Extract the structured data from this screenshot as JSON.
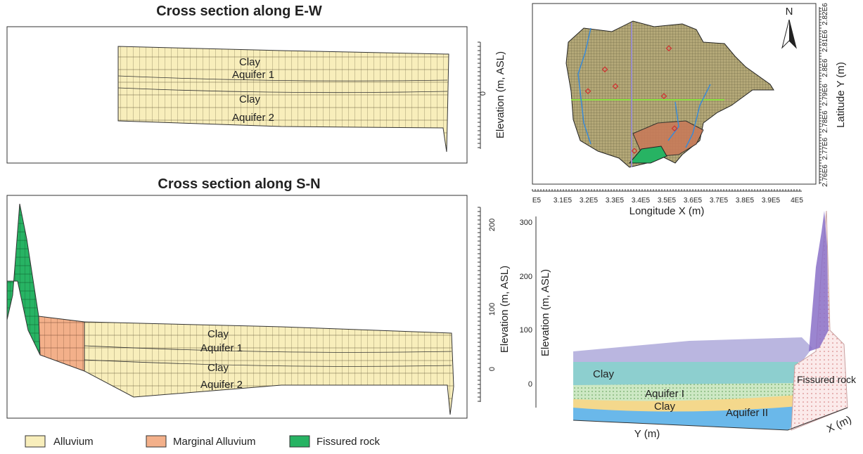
{
  "ew_section": {
    "title": "Cross section along E-W",
    "layers": [
      "Clay",
      "Aquifer 1",
      "Clay",
      "Aquifer 2"
    ],
    "axis_label": "Elevation (m, ASL)",
    "ticks": [
      "0"
    ]
  },
  "sn_section": {
    "title": "Cross section along S-N",
    "layers": [
      "Clay",
      "Aquifer 1",
      "Clay",
      "Aquifer 2"
    ],
    "axis_label": "Elevation (m, ASL)",
    "ticks": [
      "200",
      "100",
      "0"
    ]
  },
  "legend": [
    "Alluvium",
    "Marginal Alluvium",
    "Fissured rock"
  ],
  "map": {
    "north": "N",
    "y_label": "Latitude Y (m)",
    "y_ticks": [
      "2.76E6",
      "2.77E6",
      "2.78E6",
      "2.79E6",
      "2.8E6",
      "2.81E6",
      "2.82E6"
    ],
    "x_label": "Longitude X (m)",
    "x_ticks": [
      "E5",
      "3.1E5",
      "3.2E5",
      "3.3E5",
      "3.4E5",
      "3.5E5",
      "3.6E5",
      "3.7E5",
      "3.8E5",
      "3.9E5",
      "4E5"
    ]
  },
  "model_3d": {
    "axis_label": "Elevation (m, ASL)",
    "ticks": [
      "300",
      "200",
      "100",
      "0"
    ],
    "layers": [
      "Clay",
      "Aquifer I",
      "Clay",
      "Aquifer II"
    ],
    "fissured": "Fissured rock",
    "y_axis": "Y (m)",
    "x_axis": "X (m)"
  }
}
